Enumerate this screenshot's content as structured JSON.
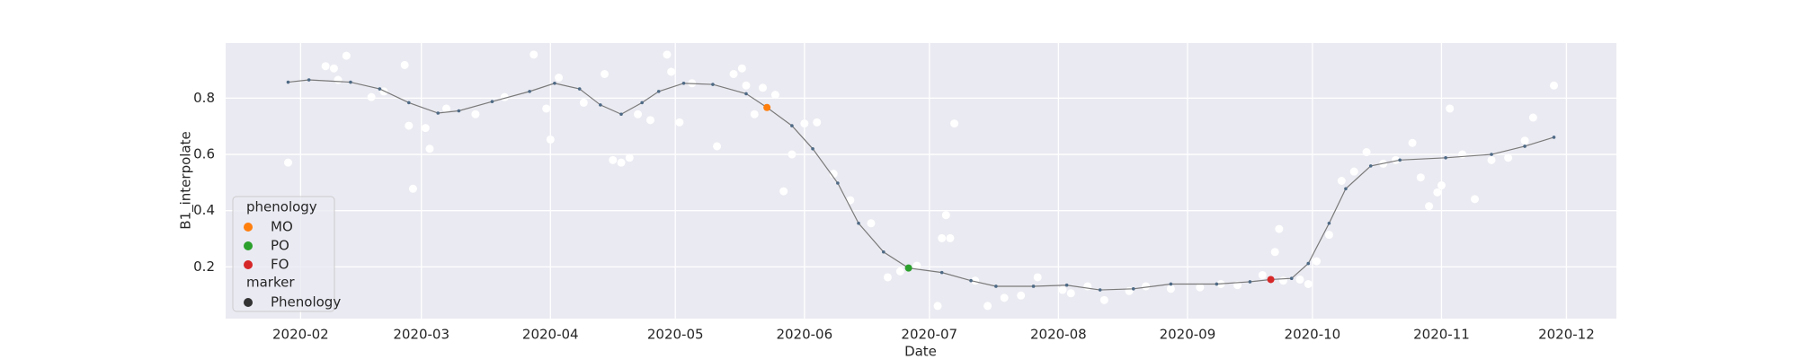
{
  "chart_data": {
    "type": "scatter",
    "x_label": "Date",
    "y_label": "B1_interpolate",
    "xlim": [
      14,
      348
    ],
    "xticks": [
      {
        "value": 32,
        "label": "2020-02"
      },
      {
        "value": 61,
        "label": "2020-03"
      },
      {
        "value": 92,
        "label": "2020-04"
      },
      {
        "value": 122,
        "label": "2020-05"
      },
      {
        "value": 153,
        "label": "2020-06"
      },
      {
        "value": 183,
        "label": "2020-07"
      },
      {
        "value": 214,
        "label": "2020-08"
      },
      {
        "value": 245,
        "label": "2020-09"
      },
      {
        "value": 275,
        "label": "2020-10"
      },
      {
        "value": 306,
        "label": "2020-11"
      },
      {
        "value": 336,
        "label": "2020-12"
      }
    ],
    "ylim": [
      0.016,
      0.996
    ],
    "yticks": [
      0.2,
      0.4,
      0.6,
      0.8
    ],
    "grid": true,
    "background": "#eaeaf2",
    "observations": {
      "color": "#ffffff",
      "x": [
        29,
        38,
        40,
        43,
        41,
        49,
        52,
        57,
        58,
        59,
        63,
        62,
        67,
        74,
        81,
        88,
        91,
        92,
        94,
        100,
        105,
        107,
        109,
        111,
        113,
        116,
        120,
        121,
        123,
        126,
        132,
        136,
        138,
        139,
        141,
        143,
        146,
        148,
        150,
        153,
        156,
        160,
        164,
        169,
        173,
        176,
        180,
        185,
        186,
        187,
        188,
        189,
        194,
        197,
        201,
        205,
        209,
        215,
        217,
        221,
        225,
        231,
        235,
        241,
        248,
        253,
        257,
        263,
        266,
        267,
        268,
        272,
        274,
        276,
        279,
        282,
        285,
        288,
        292,
        295,
        299,
        301,
        303,
        305,
        306,
        308,
        311,
        314,
        318,
        322,
        326,
        328,
        333
      ],
      "values": [
        0.571,
        0.914,
        0.906,
        0.951,
        0.865,
        0.804,
        0.824,
        0.918,
        0.702,
        0.478,
        0.62,
        0.694,
        0.763,
        0.743,
        0.804,
        0.955,
        0.763,
        0.653,
        0.873,
        0.784,
        0.886,
        0.58,
        0.571,
        0.588,
        0.743,
        0.722,
        0.955,
        0.894,
        0.714,
        0.853,
        0.629,
        0.886,
        0.906,
        0.845,
        0.743,
        0.837,
        0.812,
        0.469,
        0.6,
        0.71,
        0.714,
        0.531,
        0.437,
        0.355,
        0.163,
        0.184,
        0.204,
        0.061,
        0.302,
        0.384,
        0.302,
        0.71,
        0.151,
        0.061,
        0.09,
        0.098,
        0.163,
        0.118,
        0.106,
        0.131,
        0.082,
        0.114,
        0.131,
        0.122,
        0.127,
        0.139,
        0.135,
        0.171,
        0.253,
        0.335,
        0.151,
        0.155,
        0.139,
        0.22,
        0.314,
        0.506,
        0.539,
        0.608,
        0.567,
        0.58,
        0.641,
        0.518,
        0.416,
        0.465,
        0.49,
        0.763,
        0.6,
        0.441,
        0.58,
        0.588,
        0.649,
        0.731,
        0.845
      ]
    },
    "interpolated": {
      "color": "#4e6a85",
      "line_color": "#7a7a7a",
      "x": [
        29,
        34,
        44,
        51,
        58,
        65,
        70,
        78,
        87,
        93,
        99,
        104,
        109,
        114,
        118,
        124,
        131,
        139,
        144,
        150,
        155,
        161,
        166,
        172,
        178,
        186,
        193,
        199,
        208,
        216,
        224,
        232,
        241,
        252,
        260,
        265,
        270,
        274,
        279,
        283,
        289,
        296,
        307,
        318,
        326,
        333
      ],
      "values": [
        0.857,
        0.865,
        0.857,
        0.833,
        0.784,
        0.747,
        0.755,
        0.788,
        0.824,
        0.853,
        0.833,
        0.776,
        0.743,
        0.784,
        0.824,
        0.853,
        0.849,
        0.816,
        0.767,
        0.702,
        0.62,
        0.498,
        0.355,
        0.253,
        0.196,
        0.18,
        0.151,
        0.131,
        0.131,
        0.135,
        0.118,
        0.122,
        0.139,
        0.139,
        0.147,
        0.155,
        0.159,
        0.212,
        0.355,
        0.478,
        0.559,
        0.58,
        0.588,
        0.6,
        0.629,
        0.661
      ]
    },
    "legend": {
      "title": "phenology",
      "marker_title": "marker",
      "marker_label": "Phenology",
      "marker_color": "#333333"
    },
    "series": [
      {
        "name": "MO",
        "color": "#ff7f0e",
        "x": [
          144
        ],
        "values": [
          0.767
        ]
      },
      {
        "name": "PO",
        "color": "#2ca02c",
        "x": [
          178
        ],
        "values": [
          0.196
        ]
      },
      {
        "name": "FO",
        "color": "#d62728",
        "x": [
          265
        ],
        "values": [
          0.155
        ]
      }
    ]
  }
}
